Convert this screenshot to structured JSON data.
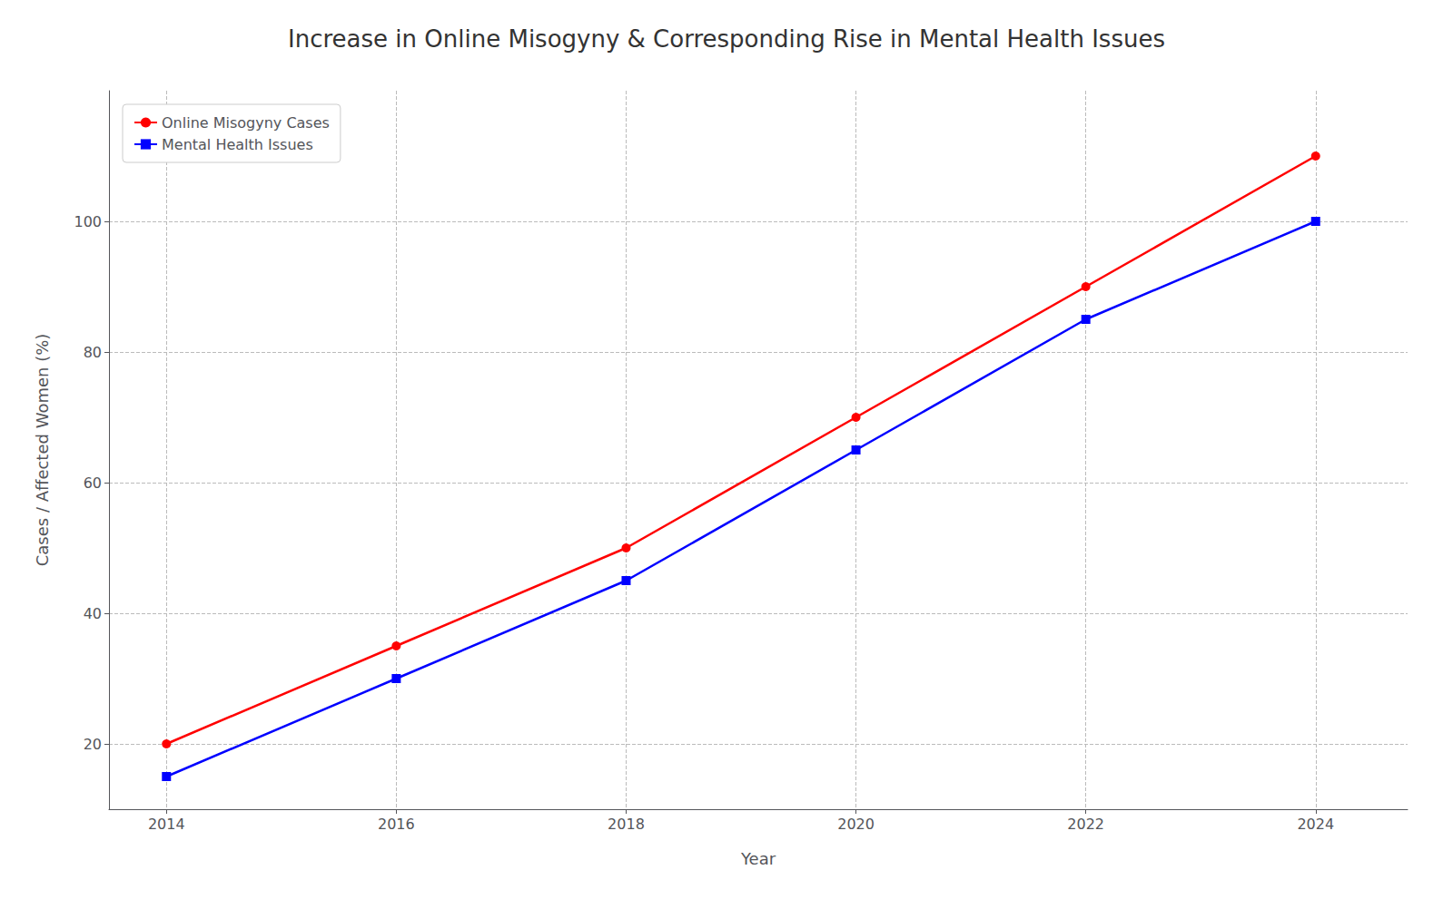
{
  "chart_data": {
    "type": "line",
    "title": "Increase in Online Misogyny & Corresponding Rise in Mental Health Issues",
    "xlabel": "Year",
    "ylabel": "Cases / Affected Women (%)",
    "x": [
      2014,
      2016,
      2018,
      2020,
      2022,
      2024
    ],
    "series": [
      {
        "name": "Online Misogyny Cases",
        "color": "#ff0000",
        "marker": "circle",
        "values": [
          20,
          35,
          50,
          70,
          90,
          110
        ]
      },
      {
        "name": "Mental Health Issues",
        "color": "#0000ff",
        "marker": "square",
        "values": [
          15,
          30,
          45,
          65,
          85,
          100
        ]
      }
    ],
    "xlim": [
      2013.5,
      2024.8
    ],
    "ylim": [
      10,
      120
    ],
    "xticks": [
      2014,
      2016,
      2018,
      2020,
      2022,
      2024
    ],
    "yticks": [
      20,
      40,
      60,
      80,
      100
    ],
    "grid": true,
    "legend": "upper left"
  }
}
